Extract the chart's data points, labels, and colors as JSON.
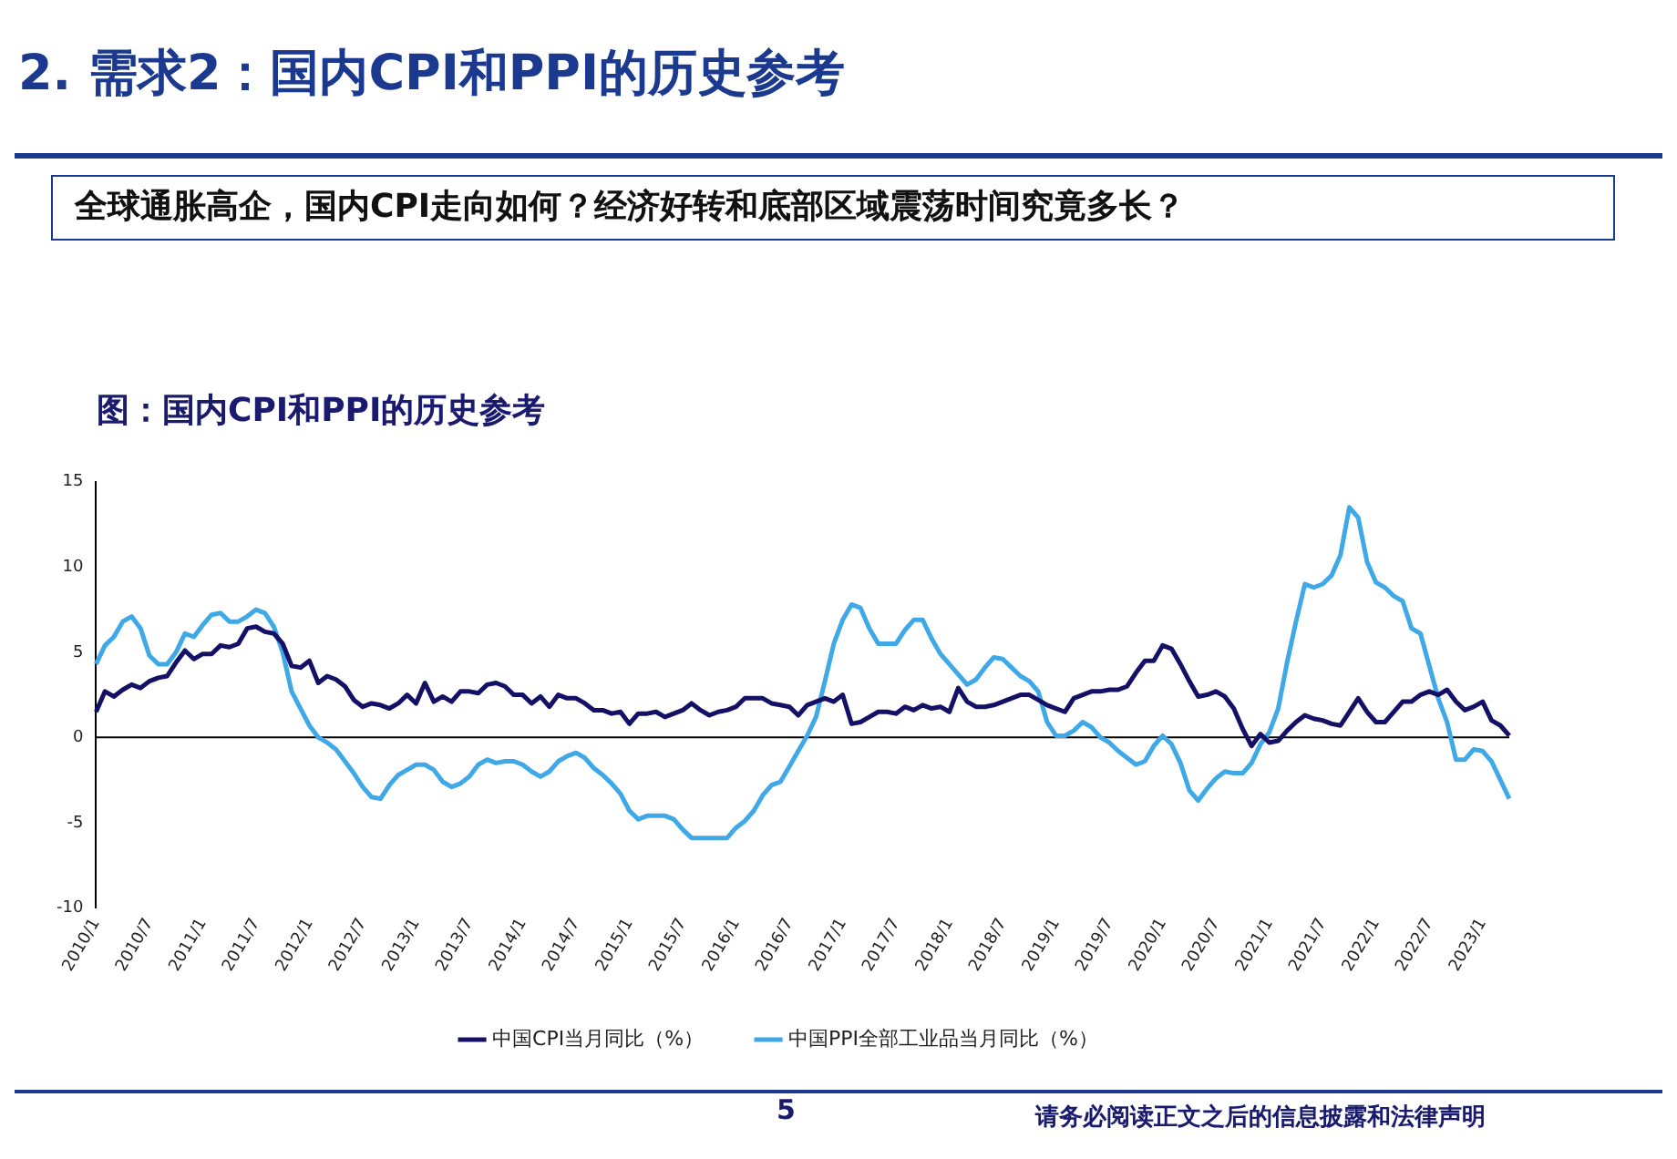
{
  "chart_data": {
    "type": "line",
    "title": "2. 需求2：国内CPI和PPI的历史参考",
    "subtitle": "全球通胀高企，国内CPI走向如何？经济好转和底部区域震荡时间究竟多长？",
    "annotations": [
      "图：国内CPI和PPI的历史参考",
      "5",
      "请务必阅读正文之后的信息披露和法律声明"
    ],
    "categories": [
      "2010/1",
      null,
      null,
      null,
      null,
      null,
      "2010/7",
      null,
      null,
      null,
      null,
      null,
      "2011/1",
      null,
      null,
      null,
      null,
      null,
      "2011/7",
      null,
      null,
      null,
      null,
      null,
      "2012/1",
      null,
      null,
      null,
      null,
      null,
      "2012/7",
      null,
      null,
      null,
      null,
      null,
      "2013/1",
      null,
      null,
      null,
      null,
      null,
      "2013/7",
      null,
      null,
      null,
      null,
      null,
      "2014/1",
      null,
      null,
      null,
      null,
      null,
      "2014/7",
      null,
      null,
      null,
      null,
      null,
      "2015/1",
      null,
      null,
      null,
      null,
      null,
      "2015/7",
      null,
      null,
      null,
      null,
      null,
      "2016/1",
      null,
      null,
      null,
      null,
      null,
      "2016/7",
      null,
      null,
      null,
      null,
      null,
      "2017/1",
      null,
      null,
      null,
      null,
      null,
      "2017/7",
      null,
      null,
      null,
      null,
      null,
      "2018/1",
      null,
      null,
      null,
      null,
      null,
      "2018/7",
      null,
      null,
      null,
      null,
      null,
      "2019/1",
      null,
      null,
      null,
      null,
      null,
      "2019/7",
      null,
      null,
      null,
      null,
      null,
      "2020/1",
      null,
      null,
      null,
      null,
      null,
      "2020/7",
      null,
      null,
      null,
      null,
      null,
      "2021/1",
      null,
      null,
      null,
      null,
      null,
      "2021/7",
      null,
      null,
      null,
      null,
      null,
      "2022/1",
      null,
      null,
      null,
      null,
      null,
      "2022/7",
      null,
      null,
      null,
      null,
      null,
      "2023/1",
      null,
      null,
      null
    ],
    "series": [
      {
        "name": "中国CPI当月同比（%）",
        "color": "#141066",
        "values": [
          1.5,
          2.7,
          2.4,
          2.8,
          3.1,
          2.9,
          3.3,
          3.5,
          3.6,
          4.4,
          5.1,
          4.6,
          4.9,
          4.9,
          5.4,
          5.3,
          5.5,
          6.4,
          6.5,
          6.2,
          6.1,
          5.5,
          4.2,
          4.1,
          4.5,
          3.2,
          3.6,
          3.4,
          3.0,
          2.2,
          1.8,
          2.0,
          1.9,
          1.7,
          2.0,
          2.5,
          2.0,
          3.2,
          2.1,
          2.4,
          2.1,
          2.7,
          2.7,
          2.6,
          3.1,
          3.2,
          3.0,
          2.5,
          2.5,
          2.0,
          2.4,
          1.8,
          2.5,
          2.3,
          2.3,
          2.0,
          1.6,
          1.6,
          1.4,
          1.5,
          0.8,
          1.4,
          1.4,
          1.5,
          1.2,
          1.4,
          1.6,
          2.0,
          1.6,
          1.3,
          1.5,
          1.6,
          1.8,
          2.3,
          2.3,
          2.3,
          2.0,
          1.9,
          1.8,
          1.3,
          1.9,
          2.1,
          2.3,
          2.1,
          2.5,
          0.8,
          0.9,
          1.2,
          1.5,
          1.5,
          1.4,
          1.8,
          1.6,
          1.9,
          1.7,
          1.8,
          1.5,
          2.9,
          2.1,
          1.8,
          1.8,
          1.9,
          2.1,
          2.3,
          2.5,
          2.5,
          2.2,
          1.9,
          1.7,
          1.5,
          2.3,
          2.5,
          2.7,
          2.7,
          2.8,
          2.8,
          3.0,
          3.8,
          4.5,
          4.5,
          5.4,
          5.2,
          4.3,
          3.3,
          2.4,
          2.5,
          2.7,
          2.4,
          1.7,
          0.5,
          -0.5,
          0.2,
          -0.3,
          -0.2,
          0.4,
          0.9,
          1.3,
          1.1,
          1.0,
          0.8,
          0.7,
          1.5,
          2.3,
          1.5,
          0.9,
          0.9,
          1.5,
          2.1,
          2.1,
          2.5,
          2.7,
          2.5,
          2.8,
          2.1,
          1.6,
          1.8,
          2.1,
          1.0,
          0.7,
          0.1
        ]
      },
      {
        "name": "中国PPI全部工业品当月同比（%）",
        "color": "#3fa9e8",
        "values": [
          4.3,
          5.4,
          5.9,
          6.8,
          7.1,
          6.4,
          4.8,
          4.3,
          4.3,
          5.0,
          6.1,
          5.9,
          6.6,
          7.2,
          7.3,
          6.8,
          6.8,
          7.1,
          7.5,
          7.3,
          6.5,
          5.0,
          2.7,
          1.7,
          0.7,
          0.0,
          -0.3,
          -0.7,
          -1.4,
          -2.1,
          -2.9,
          -3.5,
          -3.6,
          -2.8,
          -2.2,
          -1.9,
          -1.6,
          -1.6,
          -1.9,
          -2.6,
          -2.9,
          -2.7,
          -2.3,
          -1.6,
          -1.3,
          -1.5,
          -1.4,
          -1.4,
          -1.6,
          -2.0,
          -2.3,
          -2.0,
          -1.4,
          -1.1,
          -0.9,
          -1.2,
          -1.8,
          -2.2,
          -2.7,
          -3.3,
          -4.3,
          -4.8,
          -4.6,
          -4.6,
          -4.6,
          -4.8,
          -5.4,
          -5.9,
          -5.9,
          -5.9,
          -5.9,
          -5.9,
          -5.3,
          -4.9,
          -4.3,
          -3.4,
          -2.8,
          -2.6,
          -1.7,
          -0.8,
          0.1,
          1.2,
          3.3,
          5.5,
          6.9,
          7.8,
          7.6,
          6.4,
          5.5,
          5.5,
          5.5,
          6.3,
          6.9,
          6.9,
          5.8,
          4.9,
          4.3,
          3.7,
          3.1,
          3.4,
          4.1,
          4.7,
          4.6,
          4.1,
          3.6,
          3.3,
          2.7,
          0.9,
          0.1,
          0.1,
          0.4,
          0.9,
          0.6,
          0.0,
          -0.3,
          -0.8,
          -1.2,
          -1.6,
          -1.4,
          -0.5,
          0.1,
          -0.4,
          -1.5,
          -3.1,
          -3.7,
          -3.0,
          -2.4,
          -2.0,
          -2.1,
          -2.1,
          -1.5,
          -0.4,
          0.3,
          1.7,
          4.4,
          6.8,
          9.0,
          8.8,
          9.0,
          9.5,
          10.7,
          13.5,
          12.9,
          10.3,
          9.1,
          8.8,
          8.3,
          8.0,
          6.4,
          6.1,
          4.2,
          2.3,
          0.9,
          -1.3,
          -1.3,
          -0.7,
          -0.8,
          -1.4,
          -2.5,
          -3.6
        ]
      }
    ],
    "ylim": [
      -10,
      15
    ],
    "yticks": [
      -10,
      -5,
      0,
      5,
      10,
      15
    ],
    "ref_lines": [
      {
        "axis": "y",
        "value": 0,
        "color": "#000000"
      }
    ],
    "grid": false,
    "legend": "bottom",
    "marker": "none",
    "line_style": "solid"
  }
}
